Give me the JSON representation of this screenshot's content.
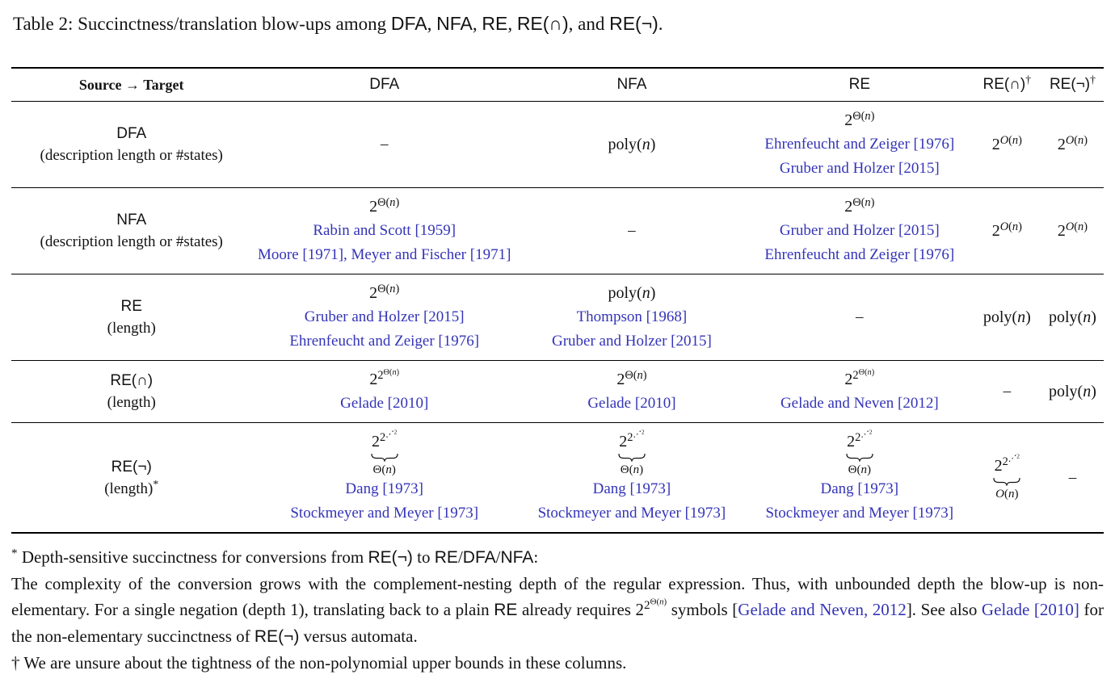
{
  "colors": {
    "link": "#3434b8",
    "text": "#131313",
    "rule": "#000000"
  },
  "caption": {
    "segments": [
      {
        "t": "Table 2: Succinctness/translation blow-ups among "
      },
      {
        "sf": "DFA"
      },
      {
        "t": ", "
      },
      {
        "sf": "NFA"
      },
      {
        "t": ", "
      },
      {
        "sf": "RE"
      },
      {
        "t": ", "
      },
      {
        "sf": "RE(∩)"
      },
      {
        "t": ", and "
      },
      {
        "sf": "RE(¬)"
      },
      {
        "t": "."
      }
    ]
  },
  "table": {
    "headers": [
      {
        "label": "Source → Target",
        "kind": "serif-bold"
      },
      {
        "label": "DFA",
        "kind": "sans"
      },
      {
        "label": "NFA",
        "kind": "sans"
      },
      {
        "label": "RE",
        "kind": "sans"
      },
      {
        "label": "RE(∩)",
        "kind": "sans",
        "sup": "†"
      },
      {
        "label": "RE(¬)",
        "kind": "sans",
        "sup": "†"
      }
    ],
    "rows": [
      {
        "label": {
          "name": "DFA",
          "sub": "(description length or #states)"
        },
        "cells": [
          {
            "kind": "dash",
            "text": "–"
          },
          {
            "kind": "math",
            "levels": [
              "poly(n)"
            ]
          },
          {
            "kind": "math",
            "levels": [
              "2",
              "Θ(n)"
            ],
            "cites": [
              "Ehrenfeucht and Zeiger [1976]",
              "Gruber and Holzer [2015]"
            ]
          },
          {
            "kind": "math",
            "levels": [
              "2",
              "O(n)"
            ]
          },
          {
            "kind": "math",
            "levels": [
              "2",
              "O(n)"
            ]
          }
        ]
      },
      {
        "label": {
          "name": "NFA",
          "sub": "(description length or #states)"
        },
        "cells": [
          {
            "kind": "math",
            "levels": [
              "2",
              "Θ(n)"
            ],
            "cites": [
              "Rabin and Scott [1959]",
              "Moore [1971], Meyer and Fischer [1971]"
            ]
          },
          {
            "kind": "dash",
            "text": "–"
          },
          {
            "kind": "math",
            "levels": [
              "2",
              "Θ(n)"
            ],
            "cites": [
              "Gruber and Holzer [2015]",
              "Ehrenfeucht and Zeiger [1976]"
            ]
          },
          {
            "kind": "math",
            "levels": [
              "2",
              "O(n)"
            ]
          },
          {
            "kind": "math",
            "levels": [
              "2",
              "O(n)"
            ]
          }
        ]
      },
      {
        "label": {
          "name": "RE",
          "sub": "(length)"
        },
        "cells": [
          {
            "kind": "math",
            "levels": [
              "2",
              "Θ(n)"
            ],
            "cites": [
              "Gruber and Holzer [2015]",
              "Ehrenfeucht and Zeiger [1976]"
            ]
          },
          {
            "kind": "math",
            "levels": [
              "poly(n)"
            ],
            "cites": [
              "Thompson [1968]",
              "Gruber and Holzer [2015]"
            ]
          },
          {
            "kind": "dash",
            "text": "–"
          },
          {
            "kind": "math",
            "levels": [
              "poly(n)"
            ]
          },
          {
            "kind": "math",
            "levels": [
              "poly(n)"
            ]
          }
        ]
      },
      {
        "label": {
          "name": "RE(∩)",
          "sub": "(length)"
        },
        "cells": [
          {
            "kind": "math",
            "levels": [
              "2",
              "2",
              "Θ(n)"
            ],
            "cites": [
              "Gelade [2010]"
            ]
          },
          {
            "kind": "math",
            "levels": [
              "2",
              "Θ(n)"
            ],
            "cites": [
              "Gelade [2010]"
            ]
          },
          {
            "kind": "math",
            "levels": [
              "2",
              "2",
              "Θ(n)"
            ],
            "cites": [
              "Gelade and Neven [2012]"
            ]
          },
          {
            "kind": "dash",
            "text": "–"
          },
          {
            "kind": "math",
            "levels": [
              "poly(n)"
            ]
          }
        ]
      },
      {
        "label": {
          "name": "RE(¬)",
          "sub": "(length)",
          "mark": "*"
        },
        "cells": [
          {
            "kind": "tower",
            "levels": [
              "2",
              "2",
              "⋰",
              "2"
            ],
            "under": "Θ(n)",
            "cites": [
              "Dang [1973]",
              "Stockmeyer and Meyer [1973]"
            ]
          },
          {
            "kind": "tower",
            "levels": [
              "2",
              "2",
              "⋰",
              "2"
            ],
            "under": "Θ(n)",
            "cites": [
              "Dang [1973]",
              "Stockmeyer and Meyer [1973]"
            ]
          },
          {
            "kind": "tower",
            "levels": [
              "2",
              "2",
              "⋰",
              "2"
            ],
            "under": "Θ(n)",
            "cites": [
              "Dang [1973]",
              "Stockmeyer and Meyer [1973]"
            ]
          },
          {
            "kind": "tower",
            "levels": [
              "2",
              "2",
              "⋰",
              "2"
            ],
            "under": "O(n)"
          },
          {
            "kind": "dash",
            "text": "–"
          }
        ]
      }
    ]
  },
  "footnotes": [
    {
      "segments": [
        {
          "sup": "*"
        },
        {
          "t": " Depth-sensitive succinctness for conversions from "
        },
        {
          "sf": "RE(¬)"
        },
        {
          "t": " to "
        },
        {
          "sf": "RE"
        },
        {
          "t": "/"
        },
        {
          "sf": "DFA"
        },
        {
          "t": "/"
        },
        {
          "sf": "NFA"
        },
        {
          "t": ":"
        }
      ]
    },
    {
      "segments": [
        {
          "t": "The complexity of the conversion grows with the complement-nesting depth of the regular expression. Thus, with unbounded depth the blow-up is non-elementary. For a single negation (depth 1), translating back to a plain "
        },
        {
          "sf": "RE"
        },
        {
          "t": " already requires "
        },
        {
          "math": [
            "2",
            "2",
            "Θ(n)"
          ]
        },
        {
          "t": " symbols ["
        },
        {
          "cite": "Gelade and Neven, 2012"
        },
        {
          "t": "]. See also "
        },
        {
          "cite": "Gelade [2010]"
        },
        {
          "t": " for the non-elementary succinctness of "
        },
        {
          "sf": "RE(¬)"
        },
        {
          "t": " versus automata."
        }
      ]
    },
    {
      "segments": [
        {
          "t": "† We are unsure about the tightness of the non-polynomial upper bounds in these columns."
        }
      ]
    }
  ]
}
